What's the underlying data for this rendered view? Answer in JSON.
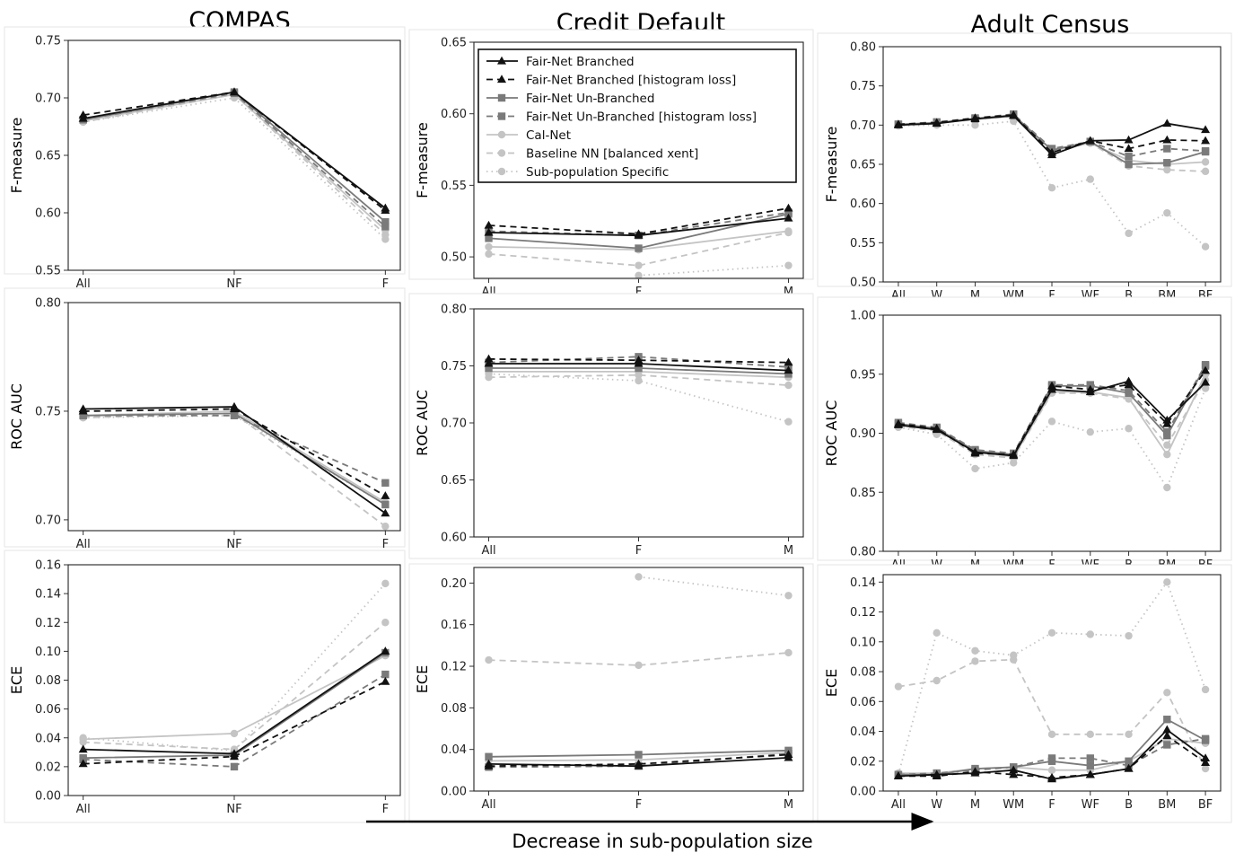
{
  "columns": [
    "COMPAS",
    "Credit Default",
    "Adult Census"
  ],
  "bottom_label": "Decrease in sub-population size",
  "series_styles": [
    {
      "name": "Fair-Net Branched",
      "color": "#111111",
      "dash": "",
      "marker": "triangle"
    },
    {
      "name": "Fair-Net Branched [histogram loss]",
      "color": "#111111",
      "dash": "7,5",
      "marker": "triangle"
    },
    {
      "name": "Fair-Net Un-Branched",
      "color": "#7a7a7a",
      "dash": "",
      "marker": "square"
    },
    {
      "name": "Fair-Net Un-Branched [histogram loss]",
      "color": "#7a7a7a",
      "dash": "7,5",
      "marker": "square"
    },
    {
      "name": "Cal-Net",
      "color": "#c4c4c4",
      "dash": "",
      "marker": "circle"
    },
    {
      "name": "Baseline NN [balanced xent]",
      "color": "#c4c4c4",
      "dash": "7,5",
      "marker": "circle"
    },
    {
      "name": "Sub-population Specific",
      "color": "#c4c4c4",
      "dash": "1.5,4",
      "marker": "circle"
    }
  ],
  "chart_data": [
    {
      "type": "line",
      "dataset": "COMPAS",
      "ylabel": "F-measure",
      "categories": [
        "All",
        "NF",
        "F"
      ],
      "ylim": [
        0.55,
        0.75
      ],
      "yticks": [
        "0.55",
        "0.60",
        "0.65",
        "0.70",
        "0.75"
      ],
      "series": [
        {
          "values": [
            0.682,
            0.705,
            0.604
          ]
        },
        {
          "values": [
            0.685,
            0.705,
            0.602
          ]
        },
        {
          "values": [
            0.681,
            0.705,
            0.592
          ]
        },
        {
          "values": [
            0.681,
            0.704,
            0.588
          ]
        },
        {
          "values": [
            0.68,
            0.703,
            0.585
          ]
        },
        {
          "values": [
            0.679,
            0.703,
            0.581
          ]
        },
        {
          "values": [
            0.679,
            0.7,
            0.577
          ]
        }
      ]
    },
    {
      "type": "line",
      "dataset": "Credit Default",
      "ylabel": "F-measure",
      "categories": [
        "All",
        "F",
        "M"
      ],
      "ylim": [
        0.485,
        0.65
      ],
      "yticks": [
        "0.50",
        "0.55",
        "0.60",
        "0.65"
      ],
      "legend": "top",
      "series": [
        {
          "values": [
            0.517,
            0.515,
            0.527
          ]
        },
        {
          "values": [
            0.522,
            0.516,
            0.534
          ]
        },
        {
          "values": [
            0.513,
            0.506,
            0.53
          ]
        },
        {
          "values": [
            0.518,
            0.515,
            0.531
          ]
        },
        {
          "values": [
            0.507,
            0.505,
            0.518
          ]
        },
        {
          "values": [
            0.502,
            0.494,
            0.517
          ]
        },
        {
          "values": [
            null,
            0.487,
            0.494
          ]
        }
      ]
    },
    {
      "type": "line",
      "dataset": "Adult Census",
      "ylabel": "F-measure",
      "categories": [
        "All",
        "W",
        "M",
        "WM",
        "F",
        "WF",
        "B",
        "BM",
        "BF"
      ],
      "ylim": [
        0.5,
        0.8
      ],
      "yticks": [
        "0.50",
        "0.55",
        "0.60",
        "0.65",
        "0.70",
        "0.75",
        "0.80"
      ],
      "series": [
        {
          "values": [
            0.7,
            0.702,
            0.708,
            0.712,
            0.662,
            0.68,
            0.681,
            0.702,
            0.694
          ]
        },
        {
          "values": [
            0.701,
            0.703,
            0.709,
            0.713,
            0.665,
            0.68,
            0.67,
            0.681,
            0.68
          ]
        },
        {
          "values": [
            0.701,
            0.703,
            0.708,
            0.713,
            0.668,
            0.679,
            0.65,
            0.652,
            0.666
          ]
        },
        {
          "values": [
            0.701,
            0.704,
            0.709,
            0.714,
            0.67,
            0.679,
            0.66,
            0.67,
            0.667
          ]
        },
        {
          "values": [
            0.7,
            0.703,
            0.707,
            0.712,
            0.668,
            0.677,
            0.655,
            0.65,
            0.653
          ]
        },
        {
          "values": [
            0.7,
            0.703,
            0.707,
            0.711,
            0.667,
            0.677,
            0.648,
            0.643,
            0.641
          ]
        },
        {
          "values": [
            0.699,
            0.7,
            0.7,
            0.705,
            0.62,
            0.631,
            0.562,
            0.588,
            0.545
          ]
        }
      ]
    },
    {
      "type": "line",
      "dataset": "COMPAS",
      "ylabel": "ROC AUC",
      "categories": [
        "All",
        "NF",
        "F"
      ],
      "ylim": [
        0.695,
        0.8
      ],
      "yticks": [
        "0.70",
        "0.75",
        "0.80"
      ],
      "series": [
        {
          "values": [
            0.751,
            0.752,
            0.703
          ]
        },
        {
          "values": [
            0.75,
            0.751,
            0.711
          ]
        },
        {
          "values": [
            0.748,
            0.749,
            0.707
          ]
        },
        {
          "values": [
            0.748,
            0.748,
            0.717
          ]
        },
        {
          "values": [
            0.748,
            0.75,
            0.708
          ]
        },
        {
          "values": [
            0.747,
            0.749,
            0.697
          ]
        },
        {
          "values": [
            0.747,
            0.748,
            0.707
          ]
        }
      ]
    },
    {
      "type": "line",
      "dataset": "Credit Default",
      "ylabel": "ROC AUC",
      "categories": [
        "All",
        "F",
        "M"
      ],
      "ylim": [
        0.6,
        0.8
      ],
      "yticks": [
        "0.60",
        "0.65",
        "0.70",
        "0.75",
        "0.80"
      ],
      "series": [
        {
          "values": [
            0.752,
            0.752,
            0.746
          ]
        },
        {
          "values": [
            0.756,
            0.755,
            0.753
          ]
        },
        {
          "values": [
            0.748,
            0.748,
            0.743
          ]
        },
        {
          "values": [
            0.753,
            0.758,
            0.749
          ]
        },
        {
          "values": [
            0.745,
            0.745,
            0.74
          ]
        },
        {
          "values": [
            0.74,
            0.742,
            0.733
          ]
        },
        {
          "values": [
            0.743,
            0.737,
            0.701
          ]
        }
      ]
    },
    {
      "type": "line",
      "dataset": "Adult Census",
      "ylabel": "ROC AUC",
      "categories": [
        "All",
        "W",
        "M",
        "WM",
        "F",
        "WF",
        "B",
        "BM",
        "BF"
      ],
      "ylim": [
        0.8,
        1.0
      ],
      "yticks": [
        "0.80",
        "0.85",
        "0.90",
        "0.95",
        "1.00"
      ],
      "series": [
        {
          "values": [
            0.907,
            0.903,
            0.884,
            0.881,
            0.937,
            0.935,
            0.944,
            0.911,
            0.943
          ]
        },
        {
          "values": [
            0.908,
            0.904,
            0.883,
            0.882,
            0.94,
            0.937,
            0.941,
            0.908,
            0.953
          ]
        },
        {
          "values": [
            0.908,
            0.904,
            0.885,
            0.882,
            0.94,
            0.94,
            0.934,
            0.898,
            0.957
          ]
        },
        {
          "values": [
            0.909,
            0.905,
            0.886,
            0.883,
            0.941,
            0.941,
            0.936,
            0.901,
            0.958
          ]
        },
        {
          "values": [
            0.907,
            0.904,
            0.884,
            0.88,
            0.935,
            0.935,
            0.93,
            0.882,
            0.95
          ]
        },
        {
          "values": [
            0.906,
            0.902,
            0.882,
            0.879,
            0.934,
            0.934,
            0.929,
            0.89,
            0.945
          ]
        },
        {
          "values": [
            0.905,
            0.899,
            0.87,
            0.875,
            0.91,
            0.901,
            0.904,
            0.854,
            0.938
          ]
        }
      ]
    },
    {
      "type": "line",
      "dataset": "COMPAS",
      "ylabel": "ECE",
      "categories": [
        "All",
        "NF",
        "F"
      ],
      "ylim": [
        0.0,
        0.16
      ],
      "yticks": [
        "0.00",
        "0.02",
        "0.04",
        "0.06",
        "0.08",
        "0.10",
        "0.12",
        "0.14",
        "0.16"
      ],
      "series": [
        {
          "values": [
            0.032,
            0.029,
            0.1
          ]
        },
        {
          "values": [
            0.022,
            0.027,
            0.079
          ]
        },
        {
          "values": [
            0.026,
            0.028,
            0.099
          ]
        },
        {
          "values": [
            0.025,
            0.02,
            0.084
          ]
        },
        {
          "values": [
            0.039,
            0.043,
            0.097
          ]
        },
        {
          "values": [
            0.037,
            0.032,
            0.12
          ]
        },
        {
          "values": [
            0.04,
            0.031,
            0.147
          ]
        }
      ]
    },
    {
      "type": "line",
      "dataset": "Credit Default",
      "ylabel": "ECE",
      "categories": [
        "All",
        "F",
        "M"
      ],
      "ylim": [
        0.0,
        0.215
      ],
      "yticks": [
        "0.00",
        "0.04",
        "0.08",
        "0.12",
        "0.16",
        "0.20"
      ],
      "series": [
        {
          "values": [
            0.026,
            0.024,
            0.032
          ]
        },
        {
          "values": [
            0.024,
            0.026,
            0.035
          ]
        },
        {
          "values": [
            0.033,
            0.035,
            0.039
          ]
        },
        {
          "values": [
            0.023,
            0.024,
            0.036
          ]
        },
        {
          "values": [
            0.029,
            0.03,
            0.037
          ]
        },
        {
          "values": [
            0.126,
            0.121,
            0.133
          ]
        },
        {
          "values": [
            null,
            0.206,
            0.188
          ]
        }
      ]
    },
    {
      "type": "line",
      "dataset": "Adult Census",
      "ylabel": "ECE",
      "categories": [
        "All",
        "W",
        "M",
        "WM",
        "F",
        "WF",
        "B",
        "BM",
        "BF"
      ],
      "ylim": [
        0.0,
        0.145
      ],
      "yticks": [
        "0.00",
        "0.02",
        "0.04",
        "0.06",
        "0.08",
        "0.10",
        "0.12",
        "0.14"
      ],
      "series": [
        {
          "values": [
            0.01,
            0.011,
            0.012,
            0.014,
            0.008,
            0.011,
            0.015,
            0.041,
            0.022
          ]
        },
        {
          "values": [
            0.01,
            0.01,
            0.013,
            0.011,
            0.009,
            0.011,
            0.015,
            0.037,
            0.019
          ]
        },
        {
          "values": [
            0.011,
            0.011,
            0.015,
            0.016,
            0.02,
            0.017,
            0.02,
            0.048,
            0.034
          ]
        },
        {
          "values": [
            0.011,
            0.012,
            0.014,
            0.016,
            0.022,
            0.022,
            0.017,
            0.031,
            0.035
          ]
        },
        {
          "values": [
            0.012,
            0.012,
            0.015,
            0.016,
            0.014,
            0.014,
            0.02,
            0.035,
            0.032
          ]
        },
        {
          "values": [
            0.07,
            0.074,
            0.087,
            0.088,
            0.038,
            0.038,
            0.038,
            0.066,
            0.015
          ]
        },
        {
          "values": [
            0.011,
            0.106,
            0.094,
            0.091,
            0.106,
            0.105,
            0.104,
            0.14,
            0.068
          ]
        }
      ]
    }
  ]
}
